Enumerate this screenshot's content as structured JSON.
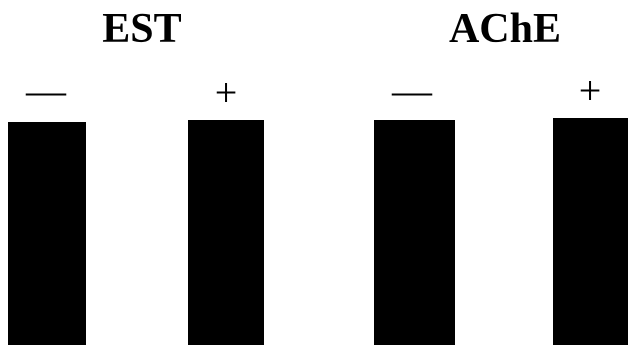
{
  "panels": [
    {
      "title": "EST",
      "lanes": [
        "—",
        "+"
      ]
    },
    {
      "title": "AChE",
      "lanes": [
        "—",
        "+"
      ]
    }
  ]
}
